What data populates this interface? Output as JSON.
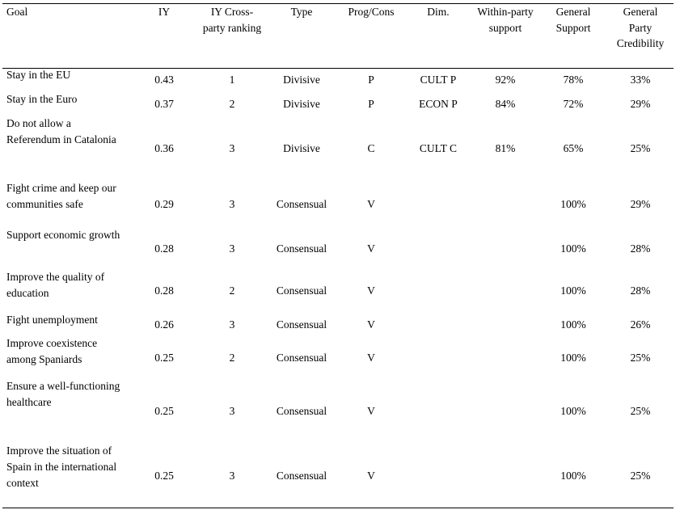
{
  "table": {
    "headers": {
      "goal": "Goal",
      "iy": "IY",
      "ranking_l1": "IY Cross-",
      "ranking_l2": "party ranking",
      "type": "Type",
      "progcons": "Prog/Cons",
      "dim": "Dim.",
      "within_l1": "Within-party",
      "within_l2": "support",
      "gen_support_l1": "General",
      "gen_support_l2": "Support",
      "cred_l1": "General",
      "cred_l2": "Party",
      "cred_l3": "Credibility"
    },
    "rows": [
      {
        "goal": "Stay in the EU",
        "iy": "0.43",
        "rank": "1",
        "type": "Divisive",
        "pc": "P",
        "dim": "CULT P",
        "within": "92%",
        "gen": "78%",
        "cred": "33%"
      },
      {
        "goal": "Stay in the Euro",
        "iy": "0.37",
        "rank": "2",
        "type": "Divisive",
        "pc": "P",
        "dim": "ECON P",
        "within": "84%",
        "gen": "72%",
        "cred": "29%"
      },
      {
        "goal": "Do not allow a\nReferendum in Catalonia",
        "iy": "0.36",
        "rank": "3",
        "type": "Divisive",
        "pc": "C",
        "dim": "CULT C",
        "within": "81%",
        "gen": "65%",
        "cred": "25%"
      },
      {
        "goal": "Fight crime and keep our\ncommunities safe",
        "iy": "0.29",
        "rank": "3",
        "type": "Consensual",
        "pc": "V",
        "dim": "",
        "within": "",
        "gen": "100%",
        "cred": "29%"
      },
      {
        "goal": "Support economic growth",
        "iy": "0.28",
        "rank": "3",
        "type": "Consensual",
        "pc": "V",
        "dim": "",
        "within": "",
        "gen": "100%",
        "cred": "28%"
      },
      {
        "goal": "Improve the quality of\neducation",
        "iy": "0.28",
        "rank": "2",
        "type": "Consensual",
        "pc": "V",
        "dim": "",
        "within": "",
        "gen": "100%",
        "cred": "28%"
      },
      {
        "goal": "Fight unemployment",
        "iy": "0.26",
        "rank": "3",
        "type": "Consensual",
        "pc": "V",
        "dim": "",
        "within": "",
        "gen": "100%",
        "cred": "26%"
      },
      {
        "goal": "Improve coexistence\namong Spaniards",
        "iy": "0.25",
        "rank": "2",
        "type": "Consensual",
        "pc": "V",
        "dim": "",
        "within": "",
        "gen": "100%",
        "cred": "25%"
      },
      {
        "goal": "Ensure a well-functioning\nhealthcare",
        "iy": "0.25",
        "rank": "3",
        "type": "Consensual",
        "pc": "V",
        "dim": "",
        "within": "",
        "gen": "100%",
        "cred": "25%"
      },
      {
        "goal": "Improve the situation of\nSpain in the international\ncontext",
        "iy": "0.25",
        "rank": "3",
        "type": "Consensual",
        "pc": "V",
        "dim": "",
        "within": "",
        "gen": "100%",
        "cred": "25%"
      }
    ]
  }
}
